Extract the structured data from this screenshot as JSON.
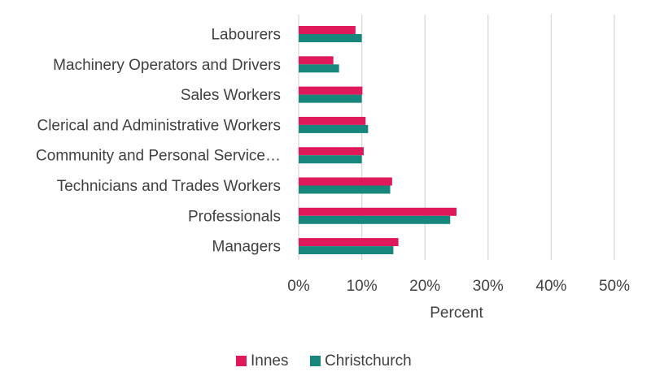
{
  "chart_data": {
    "type": "bar",
    "orientation": "horizontal",
    "categories": [
      "Labourers",
      "Machinery Operators and Drivers",
      "Sales Workers",
      "Clerical and Administrative Workers",
      "Community and Personal Service…",
      "Technicians and Trades Workers",
      "Professionals",
      "Managers"
    ],
    "series": [
      {
        "name": "Innes",
        "color": "#e0195a",
        "values": [
          9.0,
          5.5,
          10.1,
          10.6,
          10.3,
          14.8,
          25.0,
          15.8
        ]
      },
      {
        "name": "Christchurch",
        "color": "#17877e",
        "values": [
          10.0,
          6.4,
          10.0,
          11.0,
          10.0,
          14.5,
          24.0,
          15.0
        ]
      }
    ],
    "xlim": [
      0,
      50
    ],
    "xticks": [
      "0%",
      "10%",
      "20%",
      "30%",
      "40%",
      "50%"
    ],
    "xlabel": "Percent",
    "ylabel": "",
    "grid": true,
    "legend_position": "bottom"
  }
}
